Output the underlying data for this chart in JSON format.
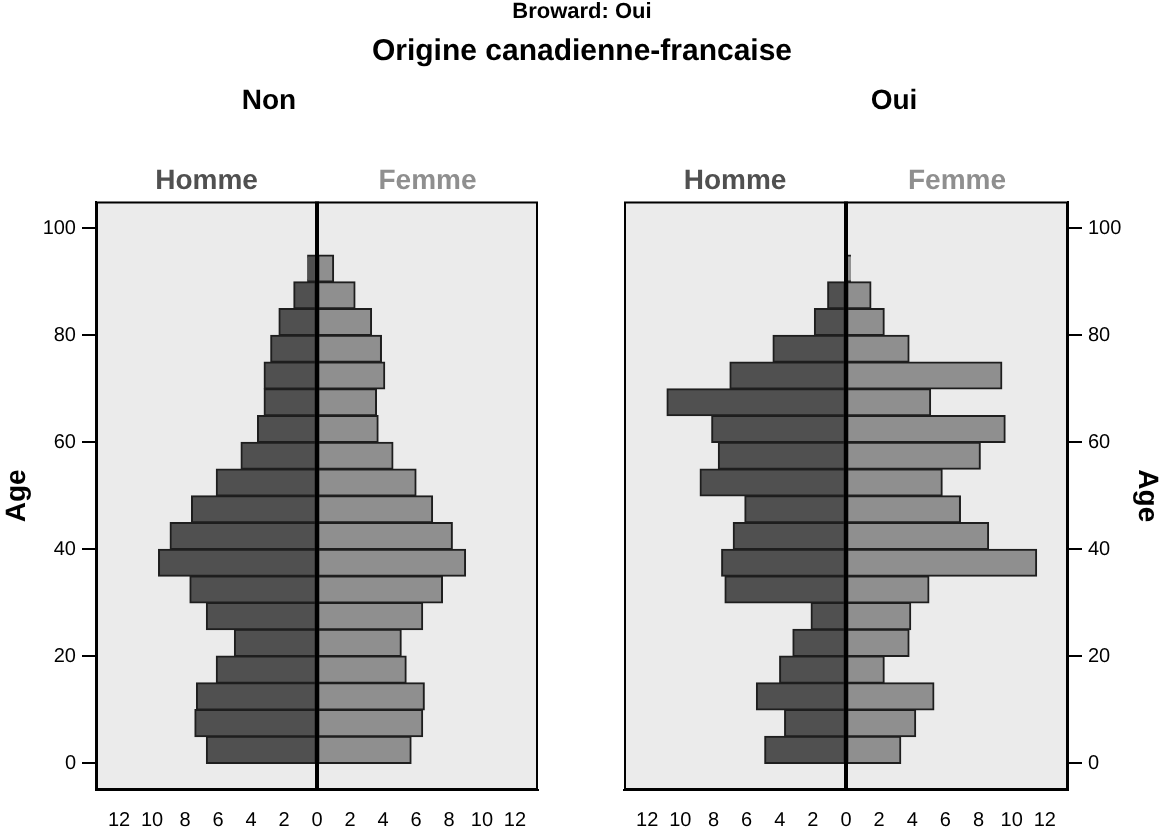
{
  "chart_data": [
    {
      "type": "bar",
      "orientation": "horizontal",
      "stacked": true,
      "title": "Non",
      "ylabel": "Age",
      "annotations": [
        "Broward: Oui",
        "Origine canadienne-francaise"
      ],
      "x": [
        2.5,
        7.5,
        12.5,
        17.5,
        22.5,
        27.5,
        32.5,
        37.5,
        42.5,
        47.5,
        52.5,
        57.5,
        62.5,
        67.5,
        72.5,
        77.5,
        82.5,
        87.5,
        92.5
      ],
      "series": [
        {
          "name": "Homme",
          "color": "#505050",
          "values": [
            -6.7,
            -7.4,
            -7.3,
            -6.1,
            -5.0,
            -6.7,
            -7.7,
            -9.6,
            -8.9,
            -7.6,
            -6.1,
            -4.6,
            -3.6,
            -3.2,
            -3.2,
            -2.8,
            -2.3,
            -1.4,
            -0.6
          ]
        },
        {
          "name": "Femme",
          "color": "#8f8f8f",
          "values": [
            5.7,
            6.4,
            6.5,
            5.4,
            5.1,
            6.4,
            7.6,
            9.0,
            8.2,
            7.0,
            6.0,
            4.6,
            3.7,
            3.6,
            4.1,
            3.9,
            3.3,
            2.3,
            1.0
          ]
        }
      ],
      "xlim": [
        -13.4,
        13.4
      ],
      "xticks": [
        {
          "value": -12,
          "label": "12"
        },
        {
          "value": -10,
          "label": "10"
        },
        {
          "value": -8,
          "label": "8"
        },
        {
          "value": -6,
          "label": "6"
        },
        {
          "value": -4,
          "label": "4"
        },
        {
          "value": -2,
          "label": "2"
        },
        0,
        2,
        4,
        6,
        8,
        10,
        12
      ],
      "ylim": [
        -5,
        105
      ],
      "yticks": [
        0,
        20,
        40,
        60,
        80,
        100
      ]
    },
    {
      "type": "bar",
      "orientation": "horizontal",
      "stacked": true,
      "title": "Oui",
      "ylabel": "Age",
      "x": [
        2.5,
        7.5,
        12.5,
        17.5,
        22.5,
        27.5,
        32.5,
        37.5,
        42.5,
        47.5,
        52.5,
        57.5,
        62.5,
        67.5,
        72.5,
        77.5,
        82.5,
        87.5,
        92.5
      ],
      "series": [
        {
          "name": "Homme",
          "color": "#505050",
          "values": [
            -4.9,
            -3.7,
            -5.4,
            -4.0,
            -3.2,
            -2.1,
            -7.3,
            -7.5,
            -6.8,
            -6.1,
            -8.8,
            -7.7,
            -8.1,
            -10.8,
            -7.0,
            -4.4,
            -1.9,
            -1.1,
            null
          ]
        },
        {
          "name": "Femme",
          "color": "#8f8f8f",
          "values": [
            3.3,
            4.2,
            5.3,
            2.3,
            3.8,
            3.9,
            5.0,
            11.5,
            8.6,
            6.9,
            5.8,
            8.1,
            9.6,
            5.1,
            9.4,
            3.8,
            2.3,
            1.5,
            0.3
          ]
        }
      ],
      "xlim": [
        -13.4,
        13.4
      ],
      "xticks": [
        {
          "value": -12,
          "label": "12"
        },
        {
          "value": -10,
          "label": "10"
        },
        {
          "value": -8,
          "label": "8"
        },
        {
          "value": -6,
          "label": "6"
        },
        {
          "value": -4,
          "label": "4"
        },
        {
          "value": -2,
          "label": "2"
        },
        0,
        2,
        4,
        6,
        8,
        10,
        12
      ],
      "ylim": [
        -5,
        105
      ],
      "yticks": [
        0,
        20,
        40,
        60,
        80,
        100
      ]
    }
  ]
}
